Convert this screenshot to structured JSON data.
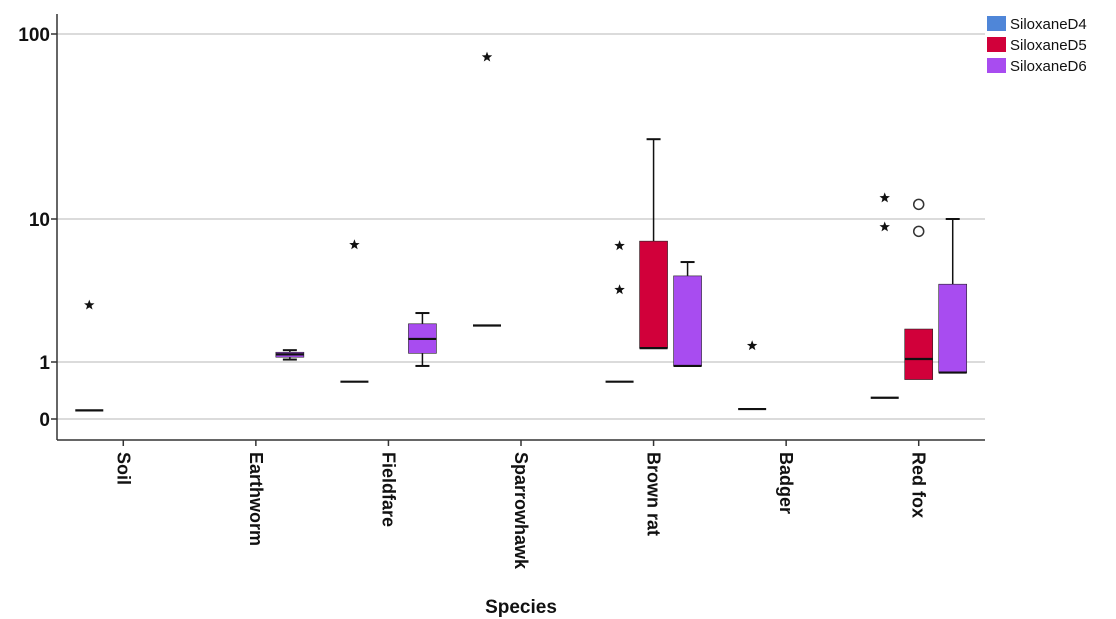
{
  "chart_data": {
    "type": "boxplot",
    "xlabel": "Species",
    "ylabel": "",
    "y_scale": "log",
    "y_ticks": [
      {
        "value": 100,
        "label": "100"
      },
      {
        "value": 10,
        "label": "10"
      },
      {
        "value": 1,
        "label": "1"
      },
      {
        "value": 0.3,
        "label": "0"
      }
    ],
    "grid": "horizontal",
    "legend_position": "top-right",
    "categories": [
      "Soil",
      "Earthworm",
      "Fieldfare",
      "Sparrowhawk",
      "Brown rat",
      "Badger",
      "Red fox"
    ],
    "series": [
      {
        "name": "SiloxaneD4",
        "color": "#4f86d8",
        "boxes": [
          {
            "category": "Soil",
            "median": 0.36,
            "outliers": [
              {
                "value": 2.5,
                "marker": "star"
              }
            ]
          },
          {
            "category": "Fieldfare",
            "median": 0.66,
            "outliers": [
              {
                "value": 6.6,
                "marker": "star"
              }
            ]
          },
          {
            "category": "Sparrowhawk",
            "median": 1.8,
            "outliers": [
              {
                "value": 75,
                "marker": "star"
              }
            ]
          },
          {
            "category": "Brown rat",
            "median": 0.66,
            "outliers": [
              {
                "value": 6.5,
                "marker": "star"
              },
              {
                "value": 3.2,
                "marker": "star"
              }
            ]
          },
          {
            "category": "Badger",
            "median": 0.37,
            "outliers": [
              {
                "value": 1.3,
                "marker": "star"
              }
            ]
          },
          {
            "category": "Red fox",
            "median": 0.47,
            "outliers": [
              {
                "value": 13,
                "marker": "star"
              },
              {
                "value": 8.8,
                "marker": "star"
              }
            ]
          }
        ]
      },
      {
        "name": "SiloxaneD5",
        "color": "#d1003a",
        "boxes": [
          {
            "category": "Brown rat",
            "q1": 1.25,
            "median": 1.25,
            "q3": 7.0,
            "whisker_low": 1.25,
            "whisker_high": 27,
            "outliers": []
          },
          {
            "category": "Red fox",
            "q1": 0.69,
            "median": 1.05,
            "q3": 1.7,
            "whisker_low": 0.69,
            "whisker_high": 1.7,
            "outliers": [
              {
                "value": 12,
                "marker": "circle"
              },
              {
                "value": 8.2,
                "marker": "circle"
              }
            ]
          }
        ]
      },
      {
        "name": "SiloxaneD6",
        "color": "#a84cf0",
        "boxes": [
          {
            "category": "Earthworm",
            "q1": 1.08,
            "median": 1.13,
            "q3": 1.17,
            "whisker_low": 1.04,
            "whisker_high": 1.21,
            "outliers": []
          },
          {
            "category": "Fieldfare",
            "q1": 1.15,
            "median": 1.45,
            "q3": 1.85,
            "whisker_low": 0.92,
            "whisker_high": 2.2,
            "outliers": []
          },
          {
            "category": "Brown rat",
            "q1": 0.92,
            "median": 0.92,
            "q3": 4.0,
            "whisker_low": 0.92,
            "whisker_high": 5.0,
            "outliers": []
          },
          {
            "category": "Red fox",
            "q1": 0.8,
            "median": 0.8,
            "q3": 3.5,
            "whisker_low": 0.8,
            "whisker_high": 10,
            "outliers": []
          }
        ]
      }
    ]
  }
}
